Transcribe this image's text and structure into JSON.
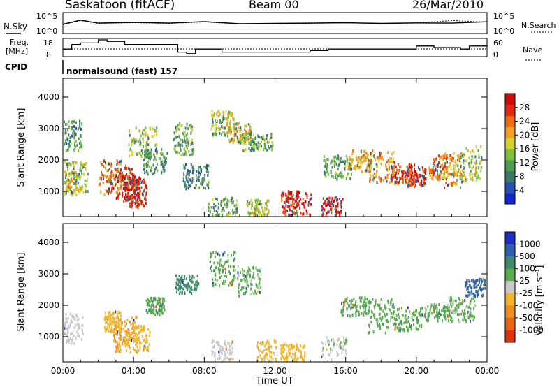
{
  "header": {
    "station": "Saskatoon (fitACF)",
    "beam": "Beam 00",
    "date": "26/Mar/2010"
  },
  "noise_panel": {
    "left_label": "N.Sky",
    "right_label": "N.Search",
    "ytick_top": "10^5",
    "ytick_bottom": "10^0"
  },
  "freq_panel": {
    "left_label_line1": "Freq.",
    "left_label_line2": "[MHz]",
    "right_label": "Nave",
    "left_ticks": [
      "18",
      "8"
    ],
    "right_ticks": [
      "60",
      "0"
    ]
  },
  "cpid": {
    "label": "CPID",
    "value": "normalsound (fast) 157"
  },
  "power_panel": {
    "ylabel": "Slant Range [km]",
    "yticks": [
      "4000",
      "3000",
      "2000",
      "1000"
    ],
    "colorbar_label": "Power [dB]",
    "colorbar_ticks": [
      "28",
      "24",
      "20",
      "16",
      "12",
      "8",
      "4"
    ],
    "colors": [
      "#1428d2",
      "#2851b4",
      "#3a7a6a",
      "#4d9e52",
      "#7cc23a",
      "#d7d22a",
      "#f5a01e",
      "#ee6a14",
      "#e3280e",
      "#d20a0a"
    ]
  },
  "velocity_panel": {
    "ylabel": "Slant Range [km]",
    "yticks": [
      "4000",
      "3000",
      "2000",
      "1000"
    ],
    "colorbar_label": "Velocity [m s⁻¹]",
    "colorbar_ticks": [
      "1000",
      "500",
      "100",
      "25",
      "-25",
      "-100",
      "-500",
      "-1000"
    ],
    "colors": [
      "#1e2dc8",
      "#2f5fb0",
      "#3f8a6a",
      "#5aad4b",
      "#c8c8c8",
      "#f2b428",
      "#f08c1e",
      "#eb6414",
      "#e0320f"
    ]
  },
  "xaxis": {
    "label": "Time UT",
    "ticks": [
      "00:00",
      "04:00",
      "08:00",
      "12:00",
      "16:00",
      "20:00",
      "00:00"
    ]
  },
  "chart_data": [
    {
      "type": "line",
      "title": "Saskatoon (fitACF)",
      "ylabel": "N.Sky",
      "series": [
        {
          "name": "N.Sky",
          "x": [
            0,
            1,
            2,
            4,
            6,
            8,
            10,
            12,
            14,
            16,
            18,
            20,
            22,
            24
          ],
          "values": [
            150,
            2000,
            300,
            500,
            300,
            800,
            200,
            250,
            300,
            400,
            250,
            350,
            300,
            700
          ]
        },
        {
          "name": "N.Search",
          "x": [
            0,
            1,
            2,
            4,
            6,
            8,
            10,
            12,
            14,
            16,
            18,
            20,
            22,
            24
          ],
          "values": [
            120,
            1500,
            250,
            400,
            250,
            650,
            180,
            220,
            260,
            380,
            230,
            320,
            1500,
            600
          ]
        }
      ],
      "xlim": [
        0,
        24
      ]
    },
    {
      "type": "line",
      "ylabel": "Freq. [MHz]",
      "series": [
        {
          "name": "Freq.",
          "x": [
            0,
            0.5,
            1,
            2,
            2.5,
            3.5,
            6.5,
            7,
            7.5,
            9,
            12,
            14,
            15,
            19.5,
            20,
            21,
            22.5,
            23,
            24
          ],
          "values": [
            12,
            15,
            16,
            18,
            17,
            15,
            10,
            9,
            12,
            10,
            10,
            11,
            12,
            12,
            14,
            13,
            12,
            14,
            15
          ]
        }
      ],
      "ylim": [
        8,
        18
      ],
      "xlim": [
        0,
        24
      ]
    },
    {
      "type": "heatmap",
      "title": "Beam 00",
      "xlabel": "Time UT",
      "ylabel": "Slant Range [km]",
      "zlabel": "Power [dB]",
      "xlim": [
        0,
        24
      ],
      "ylim": [
        200,
        4600
      ],
      "zlim": [
        0,
        30
      ],
      "cells": [
        [
          0.3,
          1300,
          18
        ],
        [
          0.6,
          1500,
          14
        ],
        [
          0.5,
          2800,
          10
        ],
        [
          2.8,
          1500,
          22
        ],
        [
          3.3,
          1300,
          26
        ],
        [
          3.8,
          1100,
          30
        ],
        [
          4.2,
          1000,
          26
        ],
        [
          4.5,
          2600,
          14
        ],
        [
          5.2,
          2000,
          10
        ],
        [
          6.8,
          2700,
          12
        ],
        [
          7.5,
          1500,
          8
        ],
        [
          9.0,
          3200,
          16
        ],
        [
          10.0,
          2900,
          18
        ],
        [
          11.0,
          2600,
          12
        ],
        [
          9.0,
          450,
          12
        ],
        [
          11.0,
          500,
          16
        ],
        [
          12.8,
          550,
          26
        ],
        [
          13.3,
          500,
          28
        ],
        [
          15.2,
          450,
          28
        ],
        [
          15.5,
          1800,
          12
        ],
        [
          16.8,
          2000,
          18
        ],
        [
          18.0,
          1800,
          20
        ],
        [
          19.2,
          1600,
          24
        ],
        [
          20.0,
          1500,
          26
        ],
        [
          21.2,
          1800,
          22
        ],
        [
          22.0,
          1700,
          20
        ],
        [
          23.0,
          1900,
          16
        ]
      ]
    },
    {
      "type": "heatmap",
      "xlabel": "Time UT",
      "ylabel": "Slant Range [km]",
      "zlabel": "Velocity [m s⁻¹]",
      "xlim": [
        0,
        24
      ],
      "ylim": [
        200,
        4600
      ],
      "zlim": [
        -1000,
        1000
      ],
      "cells": [
        [
          0.5,
          1300,
          -60
        ],
        [
          2.8,
          1500,
          -150
        ],
        [
          3.5,
          1100,
          -300
        ],
        [
          4.2,
          1000,
          -180
        ],
        [
          5.2,
          2000,
          10
        ],
        [
          7.0,
          2700,
          60
        ],
        [
          9.0,
          3200,
          5
        ],
        [
          10.5,
          2800,
          -10
        ],
        [
          9.0,
          500,
          -60
        ],
        [
          11.5,
          500,
          -120
        ],
        [
          13.0,
          500,
          -130
        ],
        [
          15.3,
          500,
          -40
        ],
        [
          16.5,
          2000,
          5
        ],
        [
          18.0,
          1700,
          0
        ],
        [
          19.5,
          1600,
          10
        ],
        [
          21.2,
          1800,
          0
        ],
        [
          22.5,
          1900,
          -5
        ],
        [
          23.3,
          2600,
          120
        ]
      ]
    }
  ]
}
